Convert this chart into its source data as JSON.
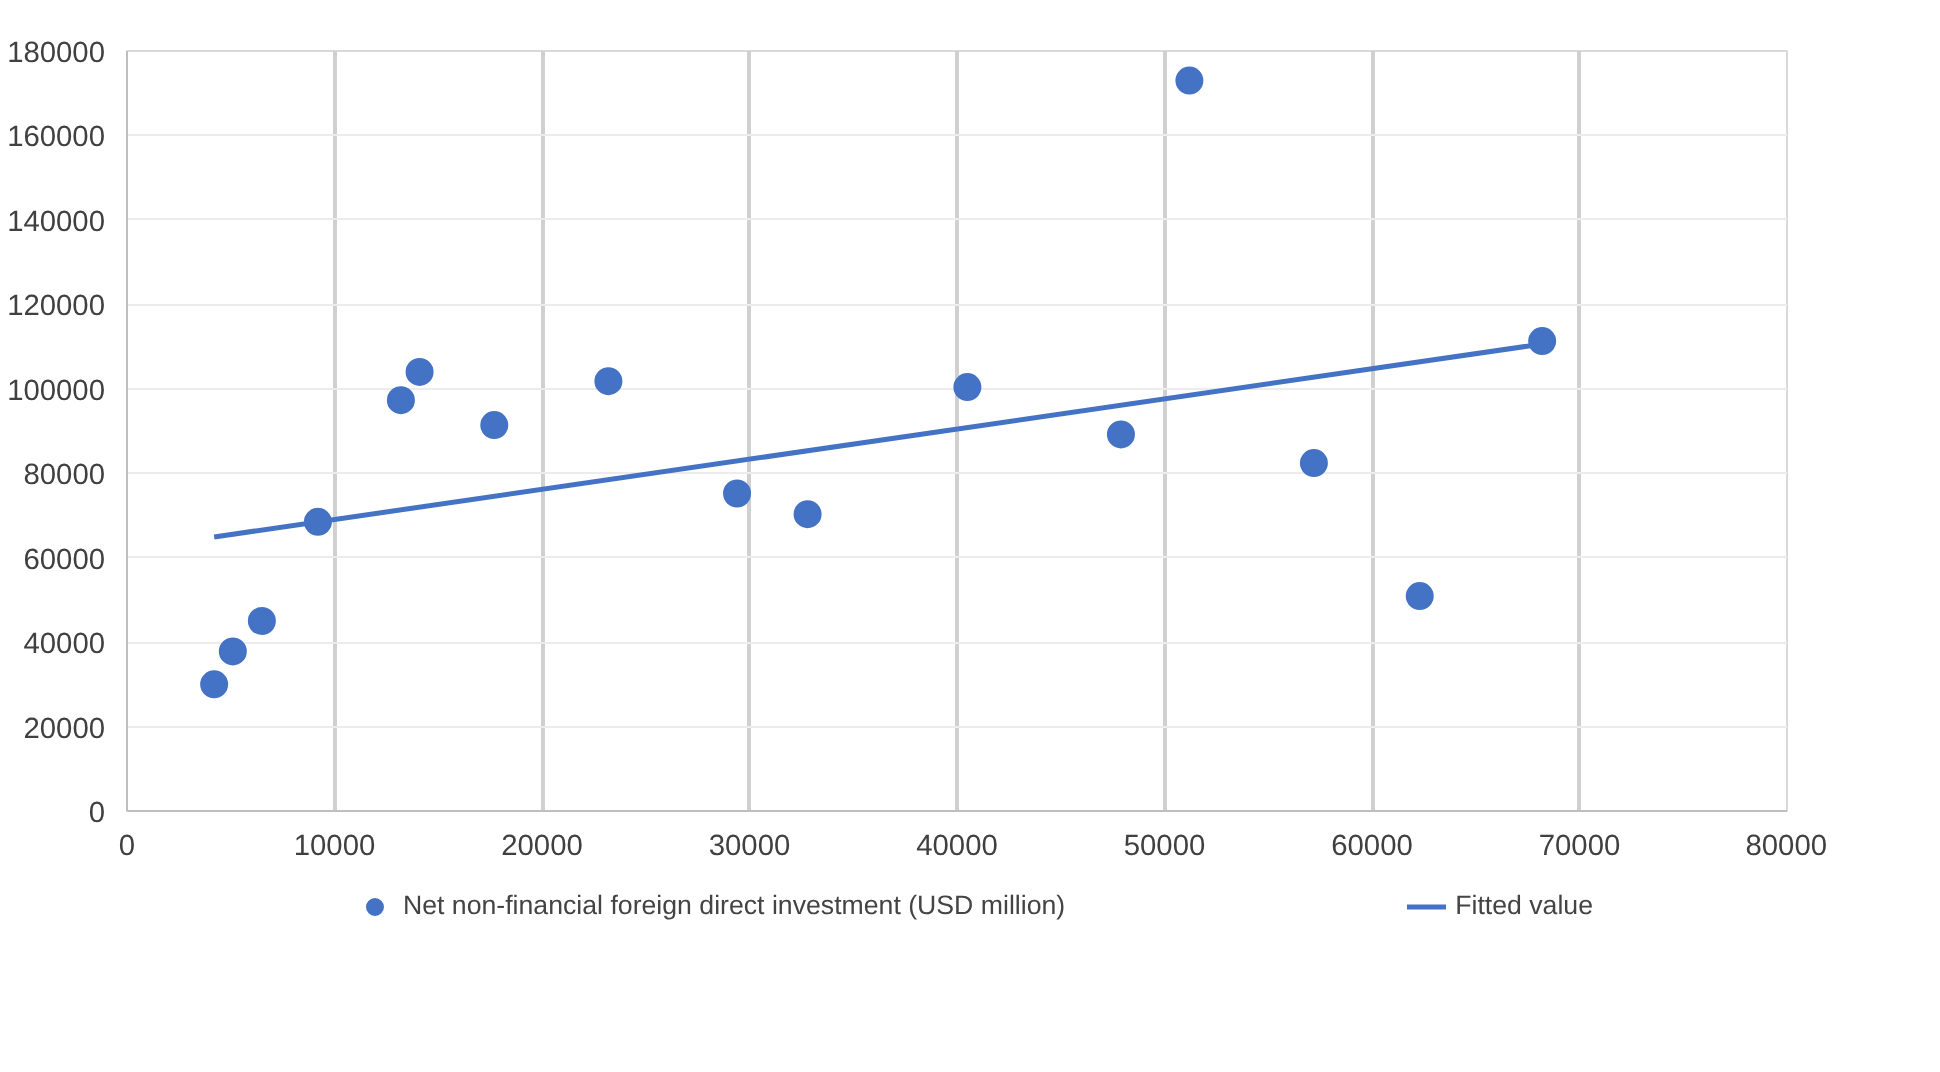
{
  "chart_data": {
    "type": "scatter",
    "xlim": [
      0,
      80000
    ],
    "xticks": [
      0,
      10000,
      20000,
      30000,
      40000,
      50000,
      60000,
      70000,
      80000
    ],
    "ylim": [
      0,
      180000
    ],
    "yticks": [
      0,
      20000,
      40000,
      60000,
      80000,
      100000,
      120000,
      140000,
      160000,
      180000
    ],
    "grid": true,
    "legend": "bottom",
    "series": [
      {
        "name": "Net non-financial foreign direct investment (USD million)",
        "color": "#4472c4",
        "marker": "circle",
        "x": [
          4200,
          5100,
          6500,
          9200,
          13200,
          14100,
          17700,
          23200,
          29400,
          32800,
          40500,
          47900,
          51200,
          57200,
          62300,
          68200
        ],
        "values": [
          30000,
          37800,
          45000,
          68500,
          97300,
          104000,
          91400,
          101800,
          75200,
          70300,
          100400,
          89200,
          173000,
          82400,
          50900,
          111300
        ]
      },
      {
        "name": "Fitted value",
        "color": "#4472c4",
        "type": "line",
        "line_style": "solid",
        "x": [
          4200,
          68200
        ],
        "values": [
          64900,
          110600
        ]
      }
    ]
  }
}
